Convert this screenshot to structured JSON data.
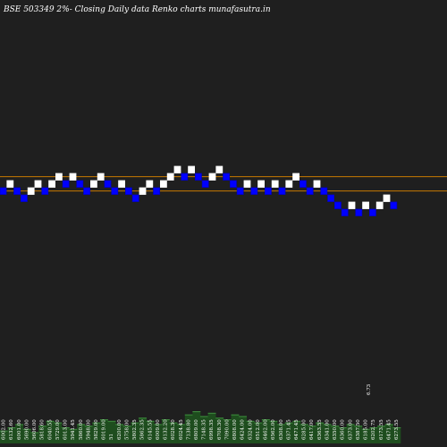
{
  "title": "BSE 503349 2%-  Closing Daily data  Renko  charts munafasutra.in",
  "colors": {
    "background": "#1f1f1f",
    "up_brick": "#ffffff",
    "down_brick": "#0000ff",
    "brick_border": "#0000cc",
    "guide_line": "#c87a00",
    "volume_bar": "#1e4d1e",
    "volume_top": "#3e8e3e",
    "text": "#ffffff"
  },
  "chart_data": {
    "type": "renko",
    "title": "BSE 503349 2%-  Closing Daily data  Renko  charts munafasutra.in",
    "brick_size_note": "2%",
    "bricks": [
      {
        "dir": "down",
        "level": 0
      },
      {
        "dir": "up",
        "level": 1
      },
      {
        "dir": "down",
        "level": 0
      },
      {
        "dir": "down",
        "level": -1
      },
      {
        "dir": "up",
        "level": 0
      },
      {
        "dir": "up",
        "level": 1
      },
      {
        "dir": "down",
        "level": 0
      },
      {
        "dir": "up",
        "level": 1
      },
      {
        "dir": "up",
        "level": 2
      },
      {
        "dir": "down",
        "level": 1
      },
      {
        "dir": "up",
        "level": 2
      },
      {
        "dir": "down",
        "level": 1
      },
      {
        "dir": "down",
        "level": 0
      },
      {
        "dir": "up",
        "level": 1
      },
      {
        "dir": "up",
        "level": 2
      },
      {
        "dir": "down",
        "level": 1
      },
      {
        "dir": "down",
        "level": 0
      },
      {
        "dir": "up",
        "level": 1
      },
      {
        "dir": "down",
        "level": 0
      },
      {
        "dir": "down",
        "level": -1
      },
      {
        "dir": "up",
        "level": 0
      },
      {
        "dir": "up",
        "level": 1
      },
      {
        "dir": "down",
        "level": 0
      },
      {
        "dir": "up",
        "level": 1
      },
      {
        "dir": "up",
        "level": 2
      },
      {
        "dir": "up",
        "level": 3
      },
      {
        "dir": "down",
        "level": 2
      },
      {
        "dir": "up",
        "level": 3
      },
      {
        "dir": "down",
        "level": 2
      },
      {
        "dir": "down",
        "level": 1
      },
      {
        "dir": "up",
        "level": 2
      },
      {
        "dir": "up",
        "level": 3
      },
      {
        "dir": "down",
        "level": 2
      },
      {
        "dir": "down",
        "level": 1
      },
      {
        "dir": "down",
        "level": 0
      },
      {
        "dir": "up",
        "level": 1
      },
      {
        "dir": "down",
        "level": 0
      },
      {
        "dir": "up",
        "level": 1
      },
      {
        "dir": "down",
        "level": 0
      },
      {
        "dir": "up",
        "level": 1
      },
      {
        "dir": "down",
        "level": 0
      },
      {
        "dir": "up",
        "level": 1
      },
      {
        "dir": "up",
        "level": 2
      },
      {
        "dir": "down",
        "level": 1
      },
      {
        "dir": "down",
        "level": 0
      },
      {
        "dir": "up",
        "level": 1
      },
      {
        "dir": "down",
        "level": 0
      },
      {
        "dir": "down",
        "level": -1
      },
      {
        "dir": "down",
        "level": -2
      },
      {
        "dir": "down",
        "level": -3
      },
      {
        "dir": "up",
        "level": -2
      },
      {
        "dir": "down",
        "level": -3
      },
      {
        "dir": "up",
        "level": -2
      },
      {
        "dir": "down",
        "level": -3
      },
      {
        "dir": "up",
        "level": -2
      },
      {
        "dir": "up",
        "level": -1
      },
      {
        "dir": "down",
        "level": -2
      }
    ],
    "guide_levels": [
      2.55,
      0.55
    ],
    "volume_labels": [
      "6002.00",
      "6132.60",
      "6001.00",
      "5690.00",
      "5606.00",
      "5818.60",
      "6040.55",
      "5729.00",
      "6013.00",
      "5941.45",
      "5860.00",
      "5948.00",
      "5829.00",
      "6019.00",
      "51",
      "6200.00",
      "5758.00",
      "5802.35",
      "5862.35",
      "6145.55",
      "6009.00",
      "6132.20",
      "6028.30",
      "6024.45",
      "7138.80",
      "6809.00",
      "7148.35",
      "6998.35",
      "6708.30",
      "7090.00",
      "6808.00",
      "6424.00",
      "6324.00",
      "6512.00",
      "6462.00",
      "6562.00",
      "6308.00",
      "6371.45",
      "6471.45",
      "6285.00",
      "6417.00",
      "6363.55",
      "6341.00",
      "6350.00",
      "6360.00",
      "6373.00",
      "6387.50",
      "6185.00",
      "6202.75",
      "6173.55",
      "6471.45",
      "6273.55"
    ],
    "volume_heights": [
      8,
      10,
      12,
      9,
      7,
      11,
      14,
      13,
      10,
      9,
      12,
      11,
      13,
      15,
      14,
      12,
      11,
      13,
      16,
      14,
      12,
      15,
      13,
      12,
      18,
      20,
      17,
      19,
      16,
      15,
      18,
      17,
      14,
      13,
      15,
      14,
      12,
      13,
      14,
      12,
      11,
      13,
      12,
      11,
      10,
      12,
      11,
      9,
      10,
      11,
      12,
      10
    ],
    "extra_labels": [
      "6.73"
    ]
  }
}
